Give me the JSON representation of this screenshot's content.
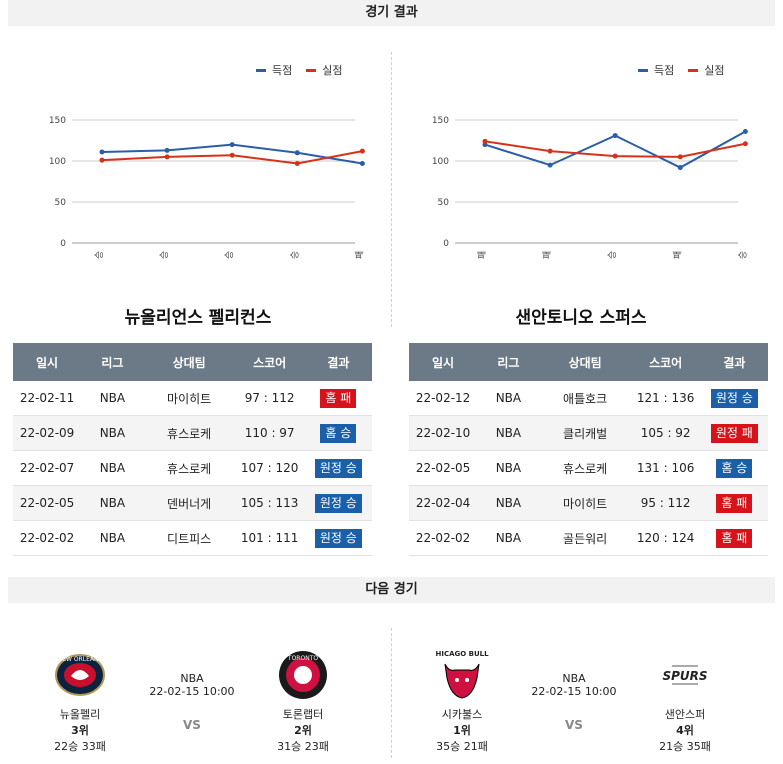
{
  "results_header": "경기 결과",
  "next_header": "다음 경기",
  "legend": {
    "score": "득점",
    "conceded": "실점",
    "score_color": "#2a5ea8",
    "conceded_color": "#d6321a"
  },
  "table_headers": [
    "일시",
    "리그",
    "상대팀",
    "스코어",
    "결과"
  ],
  "left": {
    "team": "뉴올리언스 펠리컨스",
    "chart_data": {
      "type": "line",
      "categories": [
        "승",
        "승",
        "승",
        "승",
        "패"
      ],
      "series": [
        {
          "name": "득점",
          "values": [
            111,
            113,
            120,
            110,
            97
          ]
        },
        {
          "name": "실점",
          "values": [
            101,
            105,
            107,
            97,
            112
          ]
        }
      ],
      "ylim": [
        0,
        150
      ],
      "yticks": [
        0,
        50,
        100,
        150
      ],
      "legend": "top-right",
      "grid": true
    },
    "rows": [
      {
        "date": "22-02-11",
        "league": "NBA",
        "opponent": "마이히트",
        "score": "97 : 112",
        "result": "홈 패",
        "kind": "home-loss"
      },
      {
        "date": "22-02-09",
        "league": "NBA",
        "opponent": "휴스로케",
        "score": "110 : 97",
        "result": "홈 승",
        "kind": "home-win"
      },
      {
        "date": "22-02-07",
        "league": "NBA",
        "opponent": "휴스로케",
        "score": "107 : 120",
        "result": "원정 승",
        "kind": "away-win"
      },
      {
        "date": "22-02-05",
        "league": "NBA",
        "opponent": "덴버너게",
        "score": "105 : 113",
        "result": "원정 승",
        "kind": "away-win"
      },
      {
        "date": "22-02-02",
        "league": "NBA",
        "opponent": "디트피스",
        "score": "101 : 111",
        "result": "원정 승",
        "kind": "away-win"
      }
    ]
  },
  "right": {
    "team": "샌안토니오 스퍼스",
    "chart_data": {
      "type": "line",
      "categories": [
        "패",
        "패",
        "승",
        "패",
        "승"
      ],
      "series": [
        {
          "name": "득점",
          "values": [
            120,
            95,
            131,
            92,
            136
          ]
        },
        {
          "name": "실점",
          "values": [
            124,
            112,
            106,
            105,
            121
          ]
        }
      ],
      "ylim": [
        0,
        150
      ],
      "yticks": [
        0,
        50,
        100,
        150
      ],
      "legend": "top-right",
      "grid": true
    },
    "rows": [
      {
        "date": "22-02-12",
        "league": "NBA",
        "opponent": "애틀호크",
        "score": "121 : 136",
        "result": "원정 승",
        "kind": "away-win"
      },
      {
        "date": "22-02-10",
        "league": "NBA",
        "opponent": "클리캐벌",
        "score": "105 : 92",
        "result": "원정 패",
        "kind": "away-loss"
      },
      {
        "date": "22-02-05",
        "league": "NBA",
        "opponent": "휴스로케",
        "score": "131 : 106",
        "result": "홈 승",
        "kind": "home-win"
      },
      {
        "date": "22-02-04",
        "league": "NBA",
        "opponent": "마이히트",
        "score": "95 : 112",
        "result": "홈 패",
        "kind": "home-loss"
      },
      {
        "date": "22-02-02",
        "league": "NBA",
        "opponent": "골든워리",
        "score": "120 : 124",
        "result": "홈 패",
        "kind": "home-loss"
      }
    ]
  },
  "next_games": [
    {
      "league": "NBA",
      "datetime": "22-02-15 10:00",
      "vs": "VS",
      "home": {
        "name": "뉴올펠리",
        "rank": "3위",
        "record": "22승 33패",
        "logo": "pelicans-logo",
        "logo_text": "NEW ORLEANS"
      },
      "away": {
        "name": "토론랩터",
        "rank": "2위",
        "record": "31승 23패",
        "logo": "raptors-logo",
        "logo_text": "TORONTO"
      }
    },
    {
      "league": "NBA",
      "datetime": "22-02-15 10:00",
      "vs": "VS",
      "home": {
        "name": "시카불스",
        "rank": "1위",
        "record": "35승 21패",
        "logo": "bulls-logo",
        "logo_text": "CHICAGO BULLS"
      },
      "away": {
        "name": "샌안스퍼",
        "rank": "4위",
        "record": "21승 35패",
        "logo": "spurs-logo",
        "logo_text": "SPURS"
      }
    }
  ]
}
